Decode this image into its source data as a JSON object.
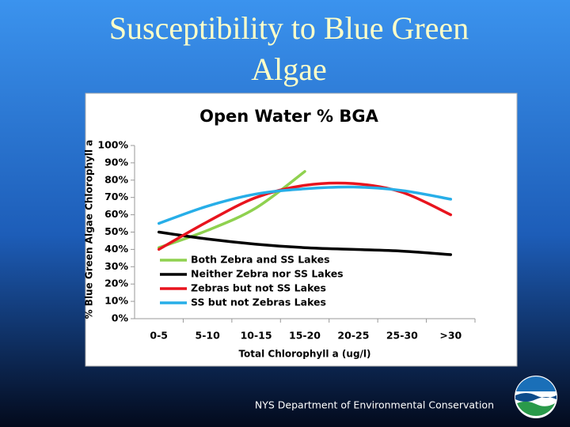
{
  "slide": {
    "title": "Susceptibility to Blue Green Algae",
    "footer": "NYS Department of Environmental Conservation"
  },
  "chart_data": {
    "type": "line",
    "title": "Open Water % BGA",
    "x_label": "Total Chlorophyll a (ug/l)",
    "y_label": "% Blue Green Algae Chlorophyll a",
    "categories": [
      "0-5",
      "5-10",
      "10-15",
      "15-20",
      "20-25",
      "25-30",
      ">30"
    ],
    "series": [
      {
        "name": "Both Zebra and SS Lakes",
        "color": "#8fd14f",
        "values": [
          41,
          51,
          64,
          85,
          null,
          null,
          null
        ]
      },
      {
        "name": "Neither Zebra nor SS Lakes",
        "color": "#000000",
        "values": [
          50,
          46,
          43,
          41,
          40,
          39,
          37
        ]
      },
      {
        "name": "Zebras but not SS Lakes",
        "color": "#e8141e",
        "values": [
          40,
          56,
          70,
          77,
          78,
          73,
          60
        ]
      },
      {
        "name": "SS but not Zebras Lakes",
        "color": "#27aee8",
        "values": [
          55,
          65,
          72,
          75,
          76,
          74,
          69
        ]
      }
    ],
    "ylim": [
      0,
      100
    ],
    "yticks": [
      {
        "value": 0,
        "label": "0%"
      },
      {
        "value": 10,
        "label": "10%"
      },
      {
        "value": 20,
        "label": "20%"
      },
      {
        "value": 30,
        "label": "30%"
      },
      {
        "value": 40,
        "label": "40%"
      },
      {
        "value": 50,
        "label": "50%"
      },
      {
        "value": 60,
        "label": "60%"
      },
      {
        "value": 70,
        "label": "70%"
      },
      {
        "value": 80,
        "label": "80%"
      },
      {
        "value": 90,
        "label": "90%"
      },
      {
        "value": 100,
        "label": "100%"
      }
    ],
    "legend": "lower-left",
    "grid": false
  }
}
